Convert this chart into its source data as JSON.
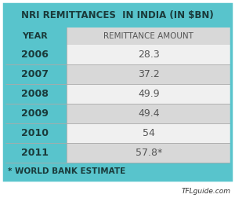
{
  "title": "NRI REMITTANCES  IN INDIA (IN $BN)",
  "col1_header": "YEAR",
  "col2_header": "REMITTANCE AMOUNT",
  "rows": [
    [
      "2006",
      "28.3"
    ],
    [
      "2007",
      "37.2"
    ],
    [
      "2008",
      "49.9"
    ],
    [
      "2009",
      "49.4"
    ],
    [
      "2010",
      "54"
    ],
    [
      "2011",
      "57.8*"
    ]
  ],
  "footnote": "* WORLD BANK ESTIMATE",
  "tfl_credit": "TFLguide.com",
  "teal_bg": "#58c4cc",
  "row_bg_white": "#f0f0f0",
  "row_bg_light": "#d8d8d8",
  "title_text_color": "#1a3a3a",
  "year_text_color": "#1a3a3a",
  "header_value_color": "#555555",
  "value_text_color": "#555555",
  "footnote_text_color": "#1a3a3a",
  "divider_color": "#aaaaaa",
  "col_split": 0.275
}
